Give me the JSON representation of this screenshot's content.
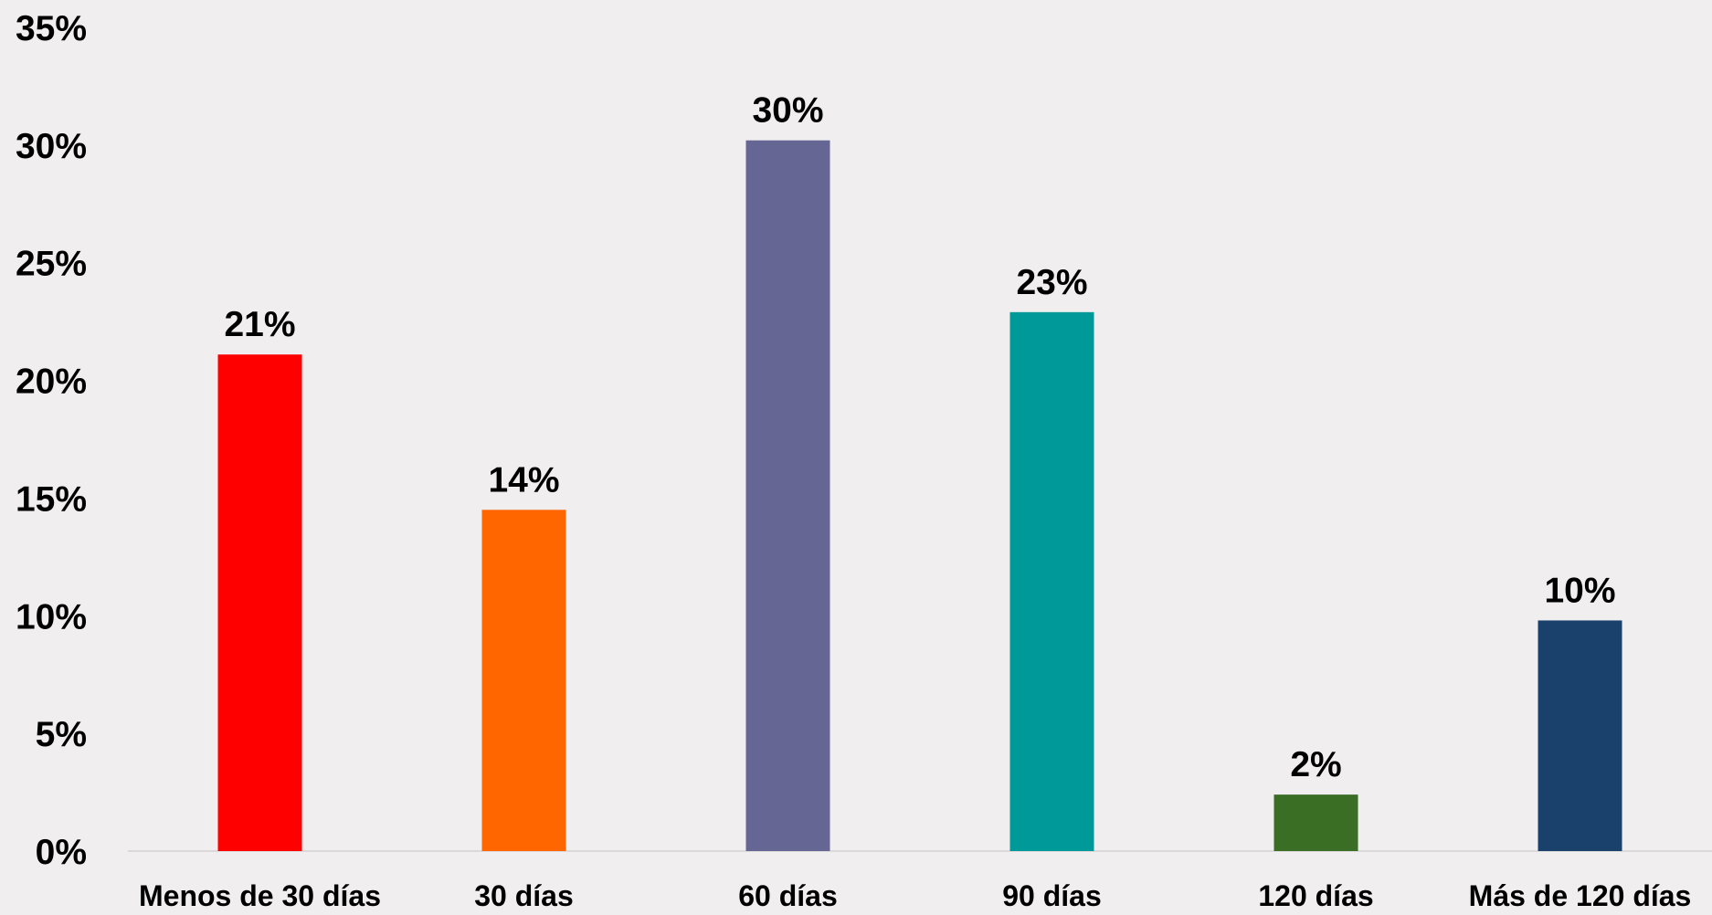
{
  "chart_data": {
    "type": "bar",
    "title": "",
    "xlabel": "",
    "ylabel": "",
    "categories": [
      "Menos de 30 días",
      "30 días",
      "60 días",
      "90 días",
      "120 días",
      "Más de 120 días"
    ],
    "values": [
      21,
      14,
      30,
      23,
      2,
      10
    ],
    "value_labels": [
      "21%",
      "14%",
      "30%",
      "23%",
      "2%",
      "10%"
    ],
    "bar_heights": [
      21.1,
      14.5,
      30.2,
      22.9,
      2.4,
      9.8
    ],
    "colors": [
      "#ff0000",
      "#ff6600",
      "#666695",
      "#009999",
      "#3a6e25",
      "#1a416c"
    ],
    "ylim": [
      0,
      35
    ],
    "yticks": [
      0,
      5,
      10,
      15,
      20,
      25,
      30,
      35
    ],
    "ytick_labels": [
      "0%",
      "5%",
      "10%",
      "15%",
      "20%",
      "25%",
      "30%",
      "35%"
    ],
    "grid": false,
    "legend": "none",
    "background": "#f0eeef",
    "axis_color": "#d9d9d9"
  }
}
